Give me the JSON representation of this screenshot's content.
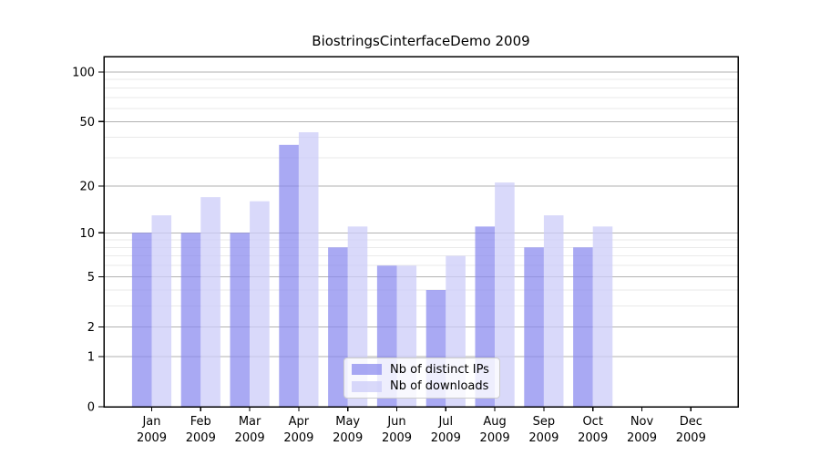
{
  "chart_data": {
    "type": "bar",
    "title": "BiostringsCinterfaceDemo 2009",
    "categories": [
      "Jan 2009",
      "Feb 2009",
      "Mar 2009",
      "Apr 2009",
      "May 2009",
      "Jun 2009",
      "Jul 2009",
      "Aug 2009",
      "Sep 2009",
      "Oct 2009",
      "Nov 2009",
      "Dec 2009"
    ],
    "x_tick_label_lines": [
      [
        "Jan",
        "2009"
      ],
      [
        "Feb",
        "2009"
      ],
      [
        "Mar",
        "2009"
      ],
      [
        "Apr",
        "2009"
      ],
      [
        "May",
        "2009"
      ],
      [
        "Jun",
        "2009"
      ],
      [
        "Jul",
        "2009"
      ],
      [
        "Aug",
        "2009"
      ],
      [
        "Sep",
        "2009"
      ],
      [
        "Oct",
        "2009"
      ],
      [
        "Nov",
        "2009"
      ],
      [
        "Dec",
        "2009"
      ]
    ],
    "series": [
      {
        "name": "Nb of distinct IPs",
        "fill": "rgba(136,136,238,0.72)",
        "values": [
          10,
          10,
          10,
          36,
          8,
          6,
          4,
          11,
          8,
          8,
          0,
          0
        ]
      },
      {
        "name": "Nb of downloads",
        "fill": "rgba(204,204,248,0.75)",
        "values": [
          13,
          17,
          16,
          43,
          11,
          6,
          7,
          21,
          13,
          11,
          0,
          0
        ]
      }
    ],
    "yscale": "log1p",
    "ylim": [
      0,
      124
    ],
    "yticks": [
      0,
      1,
      2,
      5,
      10,
      20,
      50,
      100
    ],
    "yminorticks": [
      3,
      4,
      6,
      7,
      8,
      9,
      30,
      40,
      60,
      70,
      80,
      90
    ],
    "grid": {
      "major_color": "#b2b2b2",
      "minor_color": "#e9e9e9"
    },
    "axis_color": "#000000",
    "legend": {
      "position": "lower center"
    }
  }
}
